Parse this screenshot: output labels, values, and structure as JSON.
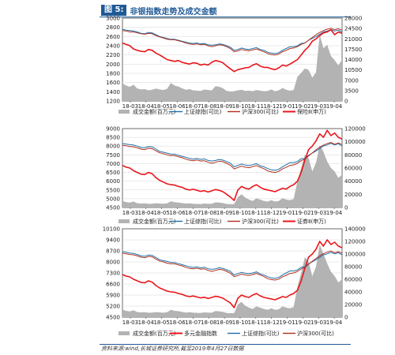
{
  "header": {
    "fig_label": "图 5:",
    "title": "非银指数走势及成交金额"
  },
  "footer": {
    "source": "资料来源:wind,长城证券研究所,截至2019年4月27日数据"
  },
  "colors": {
    "brand": "#1f5a96",
    "volume": "#b3b3b3",
    "sz": "#1f6fa8",
    "hs300": "#b0301e",
    "index": "#e8151b"
  },
  "chart_data": [
    {
      "type": "line",
      "x_labels": [
        "18-03",
        "18-04",
        "18-05",
        "18-06",
        "18-07",
        "18-08",
        "18-09",
        "18-10",
        "18-11",
        "18-12",
        "19-01",
        "19-02",
        "19-03",
        "19-04"
      ],
      "ylim_left": [
        1200,
        3000
      ],
      "yticks_left": [
        1200,
        1400,
        1600,
        1800,
        2000,
        2200,
        2400,
        2600,
        2800,
        3000
      ],
      "ylim_right": [
        0,
        28000
      ],
      "yticks_right": [
        0,
        3500,
        7000,
        10500,
        14000,
        17500,
        21000,
        24500,
        28000
      ],
      "legend": [
        "成交金额(百万元)",
        "上证综指(可比)",
        "沪深300(可比)",
        "保险Ⅱ(申万)"
      ],
      "series": [
        {
          "name": "成交金额(百万元)",
          "axis": "right",
          "kind": "area",
          "values": [
            6000,
            5200,
            4800,
            5500,
            4200,
            3900,
            4000,
            3600,
            3800,
            4200,
            3900,
            3700,
            4100,
            6100,
            5200,
            4900,
            4300,
            3800,
            4000,
            3600,
            3500,
            3400,
            3900,
            3700,
            3600,
            5000,
            4800,
            4300,
            3400,
            3200,
            3300,
            3600,
            3800,
            3400,
            3500,
            3300,
            3700,
            3500,
            3300,
            3400,
            3900,
            3300,
            3600,
            4400,
            3800,
            3500,
            3700,
            8200,
            9500,
            11000,
            10500,
            7900,
            9700,
            22500,
            17800,
            19000,
            15200,
            13800,
            12000,
            14000
          ]
        },
        {
          "name": "上证综指(可比)",
          "axis": "left",
          "kind": "line",
          "values": [
            2760,
            2740,
            2730,
            2720,
            2700,
            2670,
            2660,
            2690,
            2680,
            2640,
            2600,
            2580,
            2560,
            2540,
            2540,
            2520,
            2500,
            2480,
            2460,
            2450,
            2460,
            2440,
            2450,
            2420,
            2410,
            2420,
            2440,
            2430,
            2400,
            2370,
            2300,
            2320,
            2350,
            2330,
            2320,
            2340,
            2360,
            2320,
            2300,
            2260,
            2240,
            2230,
            2250,
            2300,
            2340,
            2380,
            2380,
            2400,
            2450,
            2460,
            2520,
            2560,
            2600,
            2650,
            2700,
            2720,
            2750,
            2720,
            2740,
            2700
          ]
        },
        {
          "name": "沪深300(可比)",
          "axis": "left",
          "kind": "line",
          "values": [
            2730,
            2720,
            2700,
            2700,
            2680,
            2660,
            2650,
            2670,
            2660,
            2620,
            2590,
            2570,
            2540,
            2530,
            2530,
            2510,
            2490,
            2460,
            2440,
            2430,
            2440,
            2420,
            2430,
            2400,
            2380,
            2400,
            2420,
            2410,
            2380,
            2340,
            2270,
            2290,
            2320,
            2300,
            2290,
            2310,
            2330,
            2300,
            2270,
            2230,
            2210,
            2200,
            2220,
            2270,
            2300,
            2340,
            2350,
            2380,
            2430,
            2460,
            2520,
            2580,
            2640,
            2690,
            2730,
            2760,
            2780,
            2750,
            2770,
            2740
          ]
        },
        {
          "name": "保险Ⅱ(申万)",
          "axis": "left",
          "kind": "line",
          "values": [
            2460,
            2430,
            2400,
            2330,
            2300,
            2280,
            2270,
            2320,
            2300,
            2240,
            2200,
            2150,
            2100,
            2080,
            2060,
            2080,
            2040,
            2020,
            2000,
            2030,
            2020,
            1980,
            2000,
            1980,
            2040,
            2080,
            2060,
            2030,
            1960,
            1900,
            1840,
            1880,
            1900,
            1920,
            1930,
            1980,
            2010,
            1960,
            1930,
            1930,
            1900,
            1880,
            1920,
            1980,
            1960,
            2000,
            2050,
            2100,
            2200,
            2300,
            2380,
            2500,
            2550,
            2620,
            2680,
            2700,
            2750,
            2640,
            2700,
            2670
          ]
        }
      ]
    },
    {
      "type": "line",
      "x_labels": [
        "18-03",
        "18-04",
        "18-05",
        "18-06",
        "18-07",
        "18-08",
        "18-09",
        "18-10",
        "18-11",
        "18-12",
        "19-01",
        "19-02",
        "19-03",
        "19-04"
      ],
      "ylim_left": [
        4500,
        9000
      ],
      "yticks_left": [
        4500,
        5000,
        5500,
        6000,
        6500,
        7000,
        7500,
        8000,
        8500,
        9000
      ],
      "ylim_right": [
        0,
        120000
      ],
      "yticks_right": [
        0,
        20000,
        40000,
        60000,
        80000,
        100000,
        120000
      ],
      "legend": [
        "成交金额(百万元)",
        "上证综指(可比)",
        "沪深300(可比)",
        "证券Ⅱ(申万)"
      ],
      "series": [
        {
          "name": "成交金额(百万元)",
          "axis": "right",
          "kind": "area",
          "values": [
            10000,
            8000,
            7500,
            9000,
            6500,
            6000,
            6200,
            5500,
            5800,
            6500,
            6000,
            5700,
            6300,
            9500,
            8000,
            7600,
            6700,
            5900,
            6200,
            5600,
            5400,
            5300,
            6000,
            5800,
            5600,
            7800,
            7500,
            6700,
            5300,
            5000,
            5100,
            16000,
            20000,
            15000,
            12000,
            10000,
            14000,
            12000,
            10000,
            9000,
            11000,
            9000,
            10000,
            14000,
            12000,
            11000,
            13000,
            40000,
            60000,
            80000,
            75000,
            55000,
            68000,
            95000,
            85000,
            70000,
            60000,
            55000,
            45000,
            50000
          ]
        },
        {
          "name": "上证综指(可比)",
          "axis": "left",
          "kind": "line",
          "values": [
            8150,
            8120,
            8080,
            8060,
            8000,
            7920,
            7900,
            7980,
            7950,
            7830,
            7700,
            7650,
            7600,
            7550,
            7540,
            7480,
            7420,
            7360,
            7300,
            7260,
            7300,
            7240,
            7270,
            7180,
            7150,
            7180,
            7240,
            7200,
            7120,
            7030,
            6820,
            6900,
            6980,
            6920,
            6890,
            6940,
            7000,
            6880,
            6820,
            6720,
            6650,
            6620,
            6680,
            6820,
            6940,
            7060,
            7060,
            7120,
            7280,
            7300,
            7480,
            7600,
            7720,
            7860,
            8010,
            8070,
            8160,
            8070,
            8130,
            8010
          ]
        },
        {
          "name": "沪深300(可比)",
          "axis": "left",
          "kind": "line",
          "values": [
            8050,
            8020,
            7980,
            7960,
            7900,
            7830,
            7800,
            7880,
            7850,
            7730,
            7620,
            7570,
            7500,
            7460,
            7460,
            7400,
            7340,
            7260,
            7200,
            7170,
            7210,
            7150,
            7170,
            7080,
            7020,
            7080,
            7140,
            7110,
            7020,
            6910,
            6700,
            6780,
            6860,
            6800,
            6770,
            6830,
            6890,
            6800,
            6710,
            6590,
            6530,
            6500,
            6560,
            6700,
            6790,
            6900,
            6930,
            7020,
            7170,
            7260,
            7440,
            7610,
            7790,
            7940,
            8060,
            8150,
            8210,
            8110,
            8180,
            8090
          ]
        },
        {
          "name": "证券Ⅱ(申万)",
          "axis": "left",
          "kind": "line",
          "values": [
            6900,
            6800,
            6750,
            6600,
            6500,
            6400,
            6380,
            6500,
            6420,
            6200,
            6050,
            5950,
            5850,
            5800,
            5780,
            5700,
            5650,
            5550,
            5500,
            5540,
            5480,
            5420,
            5460,
            5380,
            5450,
            5520,
            5480,
            5400,
            5250,
            5100,
            4900,
            5500,
            5700,
            5600,
            5550,
            5700,
            5800,
            5650,
            5550,
            5500,
            5450,
            5400,
            5500,
            5600,
            5550,
            5700,
            5800,
            6000,
            6500,
            7200,
            7800,
            8000,
            8300,
            8700,
            8500,
            8900,
            8600,
            8750,
            8500,
            8400
          ]
        }
      ]
    },
    {
      "type": "line",
      "x_labels": [
        "18-03",
        "18-04",
        "18-05",
        "18-06",
        "18-07",
        "18-08",
        "18-09",
        "18-10",
        "18-11",
        "18-12",
        "19-01",
        "19-02",
        "19-03",
        "19-04"
      ],
      "ylim_left": [
        4500,
        10100
      ],
      "yticks_left": [
        4500,
        5200,
        5900,
        6600,
        7300,
        8000,
        8700,
        9400,
        10100
      ],
      "ylim_right": [
        0,
        140000
      ],
      "yticks_right": [
        0,
        20000,
        40000,
        60000,
        80000,
        100000,
        120000,
        140000
      ],
      "legend": [
        "成交金额(百万元)",
        "多元金融指数",
        "上证综指(可比)",
        "沪深300(可比)"
      ],
      "series": [
        {
          "name": "成交金额(百万元)",
          "axis": "right",
          "kind": "area",
          "values": [
            12000,
            10000,
            9000,
            11000,
            8000,
            7500,
            7800,
            7000,
            7200,
            8000,
            7500,
            7000,
            7800,
            11500,
            10000,
            9500,
            8300,
            7300,
            7700,
            7000,
            6800,
            6600,
            7500,
            7200,
            7000,
            9600,
            9300,
            8300,
            6600,
            6200,
            6400,
            20000,
            24000,
            18000,
            15000,
            13000,
            17000,
            15000,
            13000,
            11500,
            14000,
            11500,
            12500,
            17000,
            15000,
            14000,
            16000,
            48000,
            70000,
            95000,
            88000,
            65000,
            80000,
            115000,
            100000,
            85000,
            72000,
            65000,
            55000,
            60000
          ]
        },
        {
          "name": "多元金融指数",
          "axis": "left",
          "kind": "line",
          "values": [
            7200,
            7100,
            7050,
            6900,
            6800,
            6700,
            6680,
            6800,
            6720,
            6500,
            6350,
            6250,
            6150,
            6100,
            6080,
            6000,
            5950,
            5850,
            5800,
            5840,
            5780,
            5720,
            5760,
            5680,
            5750,
            5820,
            5780,
            5700,
            5550,
            5400,
            5100,
            5700,
            5900,
            5800,
            5750,
            5900,
            6000,
            5850,
            5750,
            5700,
            5650,
            5600,
            5700,
            5800,
            5750,
            5900,
            6000,
            6200,
            6800,
            7600,
            8300,
            8500,
            8800,
            9300,
            9000,
            9400,
            9100,
            9250,
            9000,
            8900
          ]
        },
        {
          "name": "上证综指(可比)",
          "axis": "left",
          "kind": "line",
          "values": [
            8650,
            8610,
            8560,
            8540,
            8470,
            8380,
            8360,
            8440,
            8410,
            8280,
            8140,
            8080,
            8030,
            7970,
            7960,
            7890,
            7830,
            7760,
            7690,
            7650,
            7690,
            7620,
            7660,
            7560,
            7530,
            7560,
            7630,
            7590,
            7500,
            7400,
            7170,
            7260,
            7340,
            7280,
            7250,
            7300,
            7370,
            7240,
            7170,
            7060,
            6990,
            6960,
            7020,
            7170,
            7300,
            7430,
            7430,
            7490,
            7660,
            7690,
            7880,
            8010,
            8140,
            8290,
            8450,
            8510,
            8610,
            8510,
            8580,
            8450
          ]
        },
        {
          "name": "沪深300(可比)",
          "axis": "left",
          "kind": "line",
          "values": [
            8550,
            8520,
            8470,
            8450,
            8380,
            8300,
            8270,
            8350,
            8320,
            8180,
            8060,
            8000,
            7920,
            7880,
            7880,
            7810,
            7750,
            7660,
            7590,
            7560,
            7600,
            7540,
            7560,
            7460,
            7400,
            7460,
            7530,
            7500,
            7400,
            7280,
            7060,
            7140,
            7230,
            7170,
            7140,
            7200,
            7270,
            7170,
            7070,
            6940,
            6880,
            6850,
            6910,
            7060,
            7150,
            7270,
            7300,
            7400,
            7550,
            7650,
            7850,
            8040,
            8220,
            8390,
            8520,
            8620,
            8690,
            8580,
            8650,
            8560
          ]
        }
      ]
    }
  ]
}
